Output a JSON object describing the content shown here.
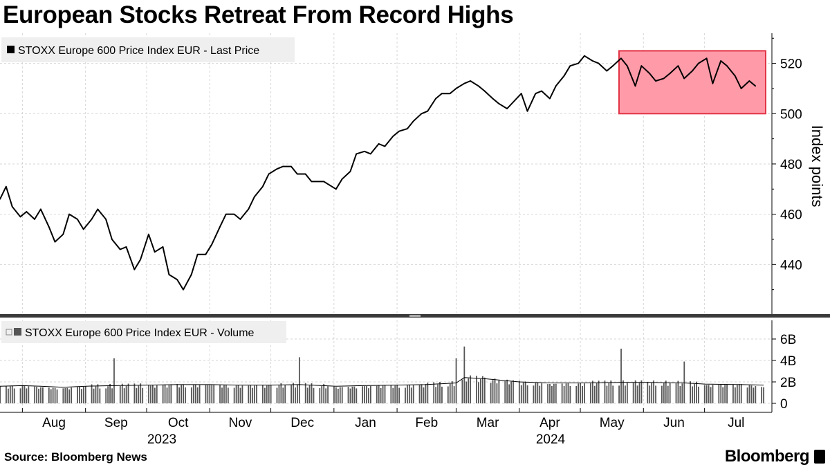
{
  "title": "European Stocks Retreat From Record Highs",
  "source": "Source: Bloomberg News",
  "brand": "Bloomberg",
  "chart_data": [
    {
      "type": "line",
      "legend": "STOXX Europe 600 Price Index EUR - Last Price",
      "ylabel": "Index points",
      "yticks": [
        440,
        460,
        480,
        500,
        520
      ],
      "ylim": [
        420,
        532
      ],
      "x_months": [
        "Aug",
        "Sep",
        "Oct",
        "Nov",
        "Dec",
        "Jan",
        "Feb",
        "Mar",
        "Apr",
        "May",
        "Jun",
        "Jul"
      ],
      "x_years": [
        "2023",
        "2024"
      ],
      "x_range": [
        "2023-07-21",
        "2024-07-30"
      ],
      "highlight": {
        "x_start": "2024-05-20",
        "x_end": "2024-07-31",
        "y_start": 500,
        "y_end": 525,
        "color": "#ff9aa8"
      },
      "x": [
        "2023-07-21",
        "2023-07-24",
        "2023-07-27",
        "2023-07-31",
        "2023-08-03",
        "2023-08-07",
        "2023-08-10",
        "2023-08-14",
        "2023-08-17",
        "2023-08-21",
        "2023-08-24",
        "2023-08-28",
        "2023-08-31",
        "2023-09-04",
        "2023-09-07",
        "2023-09-11",
        "2023-09-14",
        "2023-09-18",
        "2023-09-21",
        "2023-09-25",
        "2023-09-28",
        "2023-10-02",
        "2023-10-05",
        "2023-10-09",
        "2023-10-12",
        "2023-10-16",
        "2023-10-19",
        "2023-10-23",
        "2023-10-26",
        "2023-10-30",
        "2023-11-02",
        "2023-11-06",
        "2023-11-09",
        "2023-11-13",
        "2023-11-16",
        "2023-11-20",
        "2023-11-23",
        "2023-11-27",
        "2023-11-30",
        "2023-12-04",
        "2023-12-07",
        "2023-12-11",
        "2023-12-14",
        "2023-12-18",
        "2023-12-21",
        "2023-12-27",
        "2024-01-02",
        "2024-01-05",
        "2024-01-09",
        "2024-01-12",
        "2024-01-16",
        "2024-01-19",
        "2024-01-23",
        "2024-01-26",
        "2024-01-30",
        "2024-02-02",
        "2024-02-06",
        "2024-02-09",
        "2024-02-13",
        "2024-02-16",
        "2024-02-20",
        "2024-02-23",
        "2024-02-27",
        "2024-03-01",
        "2024-03-05",
        "2024-03-08",
        "2024-03-12",
        "2024-03-15",
        "2024-03-19",
        "2024-03-22",
        "2024-03-26",
        "2024-04-02",
        "2024-04-05",
        "2024-04-09",
        "2024-04-12",
        "2024-04-16",
        "2024-04-19",
        "2024-04-23",
        "2024-04-26",
        "2024-04-30",
        "2024-05-03",
        "2024-05-07",
        "2024-05-10",
        "2024-05-14",
        "2024-05-17",
        "2024-05-21",
        "2024-05-24",
        "2024-05-28",
        "2024-05-31",
        "2024-06-04",
        "2024-06-07",
        "2024-06-11",
        "2024-06-14",
        "2024-06-18",
        "2024-06-21",
        "2024-06-25",
        "2024-06-28",
        "2024-07-02",
        "2024-07-05",
        "2024-07-09",
        "2024-07-12",
        "2024-07-16",
        "2024-07-19",
        "2024-07-23",
        "2024-07-26"
      ],
      "y": [
        466,
        471,
        463,
        459,
        461,
        458,
        462,
        455,
        449,
        452,
        460,
        458,
        454,
        458,
        462,
        458,
        450,
        446,
        447,
        438,
        442,
        452,
        445,
        447,
        436,
        434,
        430,
        436,
        444,
        444,
        448,
        455,
        460,
        460,
        458,
        462,
        467,
        471,
        476,
        478,
        479,
        479,
        476,
        476,
        473,
        473,
        470,
        474,
        477,
        484,
        485,
        484,
        488,
        487,
        491,
        493,
        494,
        497,
        500,
        501,
        506,
        508,
        508,
        510,
        512,
        513,
        511,
        509,
        506,
        504,
        502,
        508,
        501,
        508,
        509,
        506,
        511,
        515,
        519,
        520,
        523,
        521,
        520,
        517,
        519,
        522,
        519,
        511,
        519,
        516,
        513,
        514,
        516,
        519,
        514,
        517,
        520,
        522,
        512,
        521,
        519,
        515,
        510,
        513,
        511
      ]
    },
    {
      "type": "bar",
      "legend": "STOXX Europe 600 Price Index EUR - Volume",
      "yticks": [
        "0",
        "2B",
        "4B",
        "6B"
      ],
      "ylim": [
        0,
        7.3
      ],
      "unit": "B",
      "x": [
        "2023-07-21",
        "2023-08-01",
        "2023-08-10",
        "2023-08-21",
        "2023-09-01",
        "2023-09-15",
        "2023-10-02",
        "2023-10-16",
        "2023-11-01",
        "2023-11-15",
        "2023-12-01",
        "2023-12-15",
        "2024-01-02",
        "2024-01-15",
        "2024-02-01",
        "2024-02-15",
        "2024-03-01",
        "2024-03-05",
        "2024-03-15",
        "2024-04-01",
        "2024-04-15",
        "2024-05-01",
        "2024-05-21",
        "2024-06-03",
        "2024-06-21",
        "2024-07-01",
        "2024-07-19",
        "2024-07-30"
      ],
      "values": [
        1.6,
        1.7,
        1.5,
        1.4,
        1.6,
        4.2,
        1.7,
        1.8,
        1.7,
        1.7,
        1.7,
        4.3,
        1.5,
        1.6,
        1.7,
        1.8,
        4.2,
        5.3,
        2.4,
        2.1,
        1.8,
        1.9,
        5.1,
        2.0,
        3.9,
        1.7,
        1.8,
        1.5
      ],
      "average_line": [
        1.6,
        1.65,
        1.6,
        1.5,
        1.6,
        1.65,
        1.7,
        1.75,
        1.75,
        1.7,
        1.7,
        1.75,
        1.6,
        1.65,
        1.7,
        1.75,
        1.9,
        2.4,
        2.3,
        2.0,
        1.9,
        1.9,
        1.95,
        1.95,
        1.9,
        1.8,
        1.75,
        1.7
      ]
    }
  ]
}
